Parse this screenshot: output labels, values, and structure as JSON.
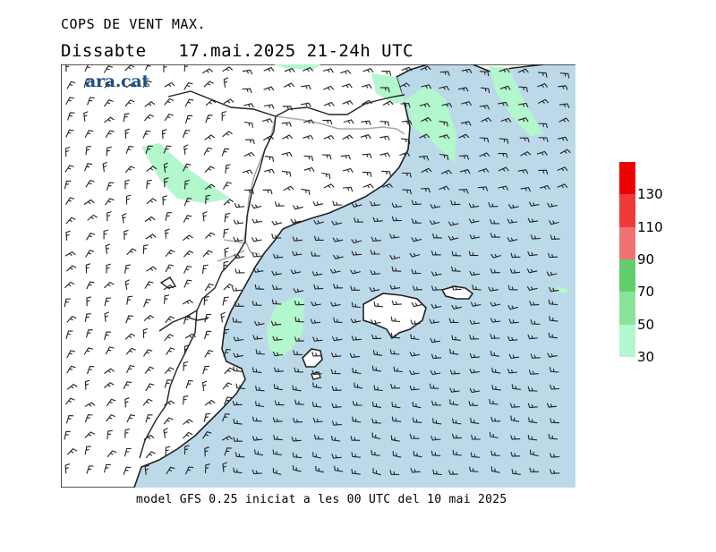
{
  "title": "COPS DE VENT MAX.",
  "subtitle": "Dissabte   17.mai.2025 21-24h UTC",
  "brand": "ara.cat",
  "footer": "model GFS 0.25 iniciat a les 00 UTC del 10 mai 2025",
  "legend": {
    "levels": [
      30,
      50,
      70,
      90,
      110,
      130
    ],
    "colors": [
      "#b3f7cc",
      "#8ae39a",
      "#60cf6a",
      "#f07373",
      "#f03a3a",
      "#ee0000"
    ],
    "top_color": "#ee0000"
  },
  "map": {
    "sea_color": "#bcd9ea",
    "land_color": "#ffffff",
    "gust_color": "#b3f7cc",
    "coast_color": "#222222",
    "border_color": "#a8a8a8",
    "wind_symbol": "barb"
  }
}
